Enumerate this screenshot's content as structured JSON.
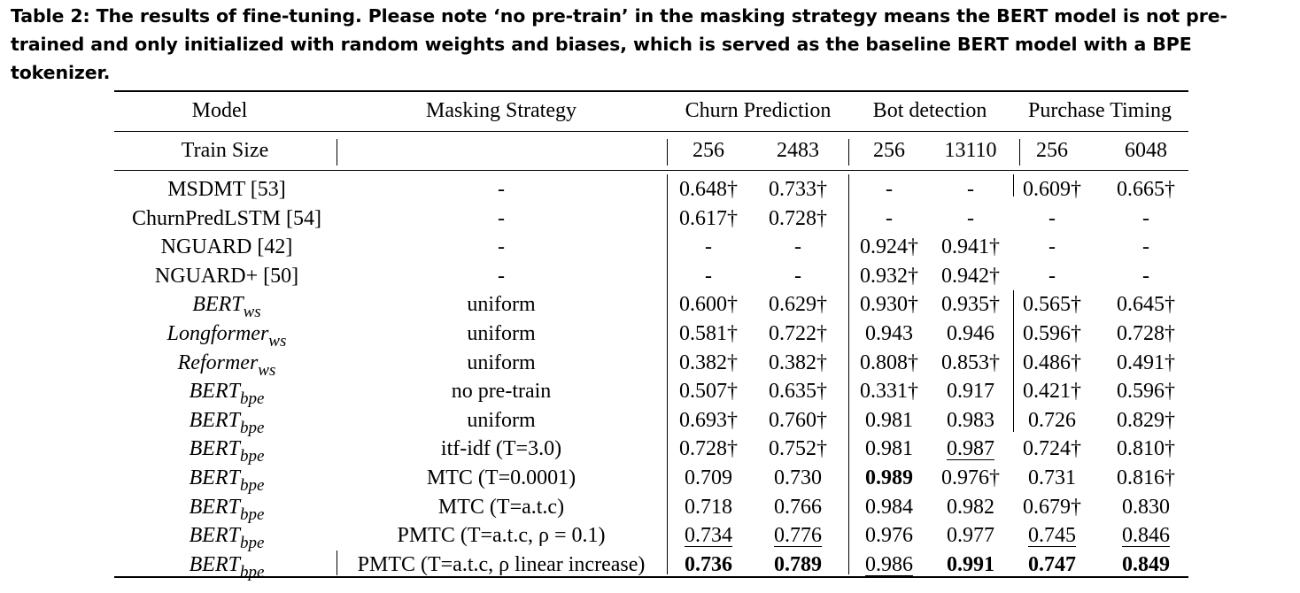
{
  "caption": "Table 2: The results of fine-tuning. Please note ‘no pre-train’ in the masking strategy means the BERT model is not pre-trained and only initialized with random weights and biases, which is served as the baseline BERT model with a BPE tokenizer.",
  "header": {
    "model": "Model",
    "masking_strategy": "Masking Strategy",
    "churn_prediction": "Churn Prediction",
    "bot_detection": "Bot detection",
    "purchase_timing": "Purchase Timing",
    "train_size": "Train Size",
    "sizes": [
      "256",
      "2483",
      "256",
      "13110",
      "256",
      "6048"
    ]
  },
  "rows": [
    {
      "model": "MSDMT [53]",
      "model_main": "",
      "model_sub": "",
      "masking": "-",
      "values": [
        "0.648†",
        "0.733†",
        "-",
        "-",
        "0.609†",
        "0.665†"
      ],
      "bold": [],
      "underline": []
    },
    {
      "model": "ChurnPredLSTM [54]",
      "model_main": "",
      "model_sub": "",
      "masking": "-",
      "values": [
        "0.617†",
        "0.728†",
        "-",
        "-",
        "-",
        "-"
      ],
      "bold": [],
      "underline": []
    },
    {
      "model": "NGUARD [42]",
      "model_main": "",
      "model_sub": "",
      "masking": "-",
      "values": [
        "-",
        "-",
        "0.924†",
        "0.941†",
        "-",
        "-"
      ],
      "bold": [],
      "underline": []
    },
    {
      "model": "NGUARD+ [50]",
      "model_main": "",
      "model_sub": "",
      "masking": "-",
      "values": [
        "-",
        "-",
        "0.932†",
        "0.942†",
        "-",
        "-"
      ],
      "bold": [],
      "underline": []
    },
    {
      "model": "",
      "model_main": "BERT",
      "model_sub": "ws",
      "masking": "uniform",
      "values": [
        "0.600†",
        "0.629†",
        "0.930†",
        "0.935†",
        "0.565†",
        "0.645†"
      ],
      "bold": [],
      "underline": []
    },
    {
      "model": "",
      "model_main": "Longformer",
      "model_sub": "ws",
      "masking": "uniform",
      "values": [
        "0.581†",
        "0.722†",
        "0.943",
        "0.946",
        "0.596†",
        "0.728†"
      ],
      "bold": [],
      "underline": []
    },
    {
      "model": "",
      "model_main": "Reformer",
      "model_sub": "ws",
      "masking": "uniform",
      "values": [
        "0.382†",
        "0.382†",
        "0.808†",
        "0.853†",
        "0.486†",
        "0.491†"
      ],
      "bold": [],
      "underline": []
    },
    {
      "model": "",
      "model_main": "BERT",
      "model_sub": "bpe",
      "masking": "no pre-train",
      "values": [
        "0.507†",
        "0.635†",
        "0.331†",
        "0.917",
        "0.421†",
        "0.596†"
      ],
      "bold": [],
      "underline": []
    },
    {
      "model": "",
      "model_main": "BERT",
      "model_sub": "bpe",
      "masking": "uniform",
      "values": [
        "0.693†",
        "0.760†",
        "0.981",
        "0.983",
        "0.726",
        "0.829†"
      ],
      "bold": [],
      "underline": []
    },
    {
      "model": "",
      "model_main": "BERT",
      "model_sub": "bpe",
      "masking": "itf-idf (T=3.0)",
      "values": [
        "0.728†",
        "0.752†",
        "0.981",
        "0.987",
        "0.724†",
        "0.810†"
      ],
      "bold": [],
      "underline": [
        3
      ]
    },
    {
      "model": "",
      "model_main": "BERT",
      "model_sub": "bpe",
      "masking": "MTC (T=0.0001)",
      "values": [
        "0.709",
        "0.730",
        "0.989",
        "0.976†",
        "0.731",
        "0.816†"
      ],
      "bold": [
        2
      ],
      "underline": []
    },
    {
      "model": "",
      "model_main": "BERT",
      "model_sub": "bpe",
      "masking": "MTC (T=a.t.c)",
      "values": [
        "0.718",
        "0.766",
        "0.984",
        "0.982",
        "0.679†",
        "0.830"
      ],
      "bold": [],
      "underline": []
    },
    {
      "model": "",
      "model_main": "BERT",
      "model_sub": "bpe",
      "masking": "PMTC (T=a.t.c, ρ = 0.1)",
      "values": [
        "0.734",
        "0.776",
        "0.976",
        "0.977",
        "0.745",
        "0.846"
      ],
      "bold": [],
      "underline": [
        0,
        1,
        4,
        5
      ]
    },
    {
      "model": "",
      "model_main": "BERT",
      "model_sub": "bpe",
      "masking": "PMTC (T=a.t.c, ρ  linear increase)",
      "values": [
        "0.736",
        "0.789",
        "0.986",
        "0.991",
        "0.747",
        "0.849"
      ],
      "bold": [
        0,
        1,
        3,
        4,
        5
      ],
      "underline": [
        2
      ]
    }
  ]
}
